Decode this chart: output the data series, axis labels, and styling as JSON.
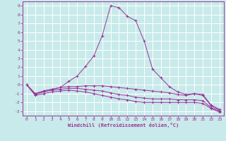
{
  "xlabel": "Windchill (Refroidissement éolien,°C)",
  "bg_color": "#c8eaea",
  "grid_color": "#ffffff",
  "line_color": "#993399",
  "spine_color": "#993399",
  "xlim": [
    -0.5,
    23.5
  ],
  "ylim": [
    -3.5,
    9.5
  ],
  "xticks": [
    0,
    1,
    2,
    3,
    4,
    5,
    6,
    7,
    8,
    9,
    10,
    11,
    12,
    13,
    14,
    15,
    16,
    17,
    18,
    19,
    20,
    21,
    22,
    23
  ],
  "yticks": [
    -3,
    -2,
    -1,
    0,
    1,
    2,
    3,
    4,
    5,
    6,
    7,
    8,
    9
  ],
  "series": [
    {
      "x": [
        0,
        1,
        2,
        3,
        4,
        5,
        6,
        7,
        8,
        9,
        10,
        11,
        12,
        13,
        14,
        15,
        16,
        17,
        18,
        19,
        20,
        21,
        22,
        23
      ],
      "y": [
        0,
        -1,
        -0.7,
        -0.5,
        -0.3,
        0.4,
        1.0,
        2.1,
        3.3,
        5.6,
        9.0,
        8.8,
        7.8,
        7.3,
        5.0,
        1.8,
        0.8,
        -0.2,
        -0.8,
        -1.1,
        -1.0,
        -1.1,
        -2.3,
        -2.8
      ]
    },
    {
      "x": [
        0,
        1,
        2,
        3,
        4,
        5,
        6,
        7,
        8,
        9,
        10,
        11,
        12,
        13,
        14,
        15,
        16,
        17,
        18,
        19,
        20,
        21,
        22,
        23
      ],
      "y": [
        0,
        -1.0,
        -0.7,
        -0.5,
        -0.3,
        -0.2,
        -0.2,
        -0.1,
        -0.1,
        -0.1,
        -0.2,
        -0.3,
        -0.4,
        -0.5,
        -0.6,
        -0.7,
        -0.8,
        -0.9,
        -1.1,
        -1.2,
        -1.0,
        -1.2,
        -2.4,
        -2.9
      ]
    },
    {
      "x": [
        0,
        1,
        2,
        3,
        4,
        5,
        6,
        7,
        8,
        9,
        10,
        11,
        12,
        13,
        14,
        15,
        16,
        17,
        18,
        19,
        20,
        21,
        22,
        23
      ],
      "y": [
        0,
        -1.1,
        -0.8,
        -0.6,
        -0.5,
        -0.4,
        -0.4,
        -0.5,
        -0.6,
        -0.7,
        -0.9,
        -1.1,
        -1.2,
        -1.4,
        -1.5,
        -1.6,
        -1.6,
        -1.6,
        -1.7,
        -1.7,
        -1.7,
        -1.8,
        -2.6,
        -3.0
      ]
    },
    {
      "x": [
        0,
        1,
        2,
        3,
        4,
        5,
        6,
        7,
        8,
        9,
        10,
        11,
        12,
        13,
        14,
        15,
        16,
        17,
        18,
        19,
        20,
        21,
        22,
        23
      ],
      "y": [
        0,
        -1.2,
        -1.0,
        -0.8,
        -0.7,
        -0.6,
        -0.7,
        -0.8,
        -1.0,
        -1.2,
        -1.4,
        -1.6,
        -1.7,
        -1.9,
        -2.0,
        -2.0,
        -2.0,
        -2.0,
        -2.0,
        -2.0,
        -2.0,
        -2.1,
        -2.7,
        -3.1
      ]
    }
  ]
}
